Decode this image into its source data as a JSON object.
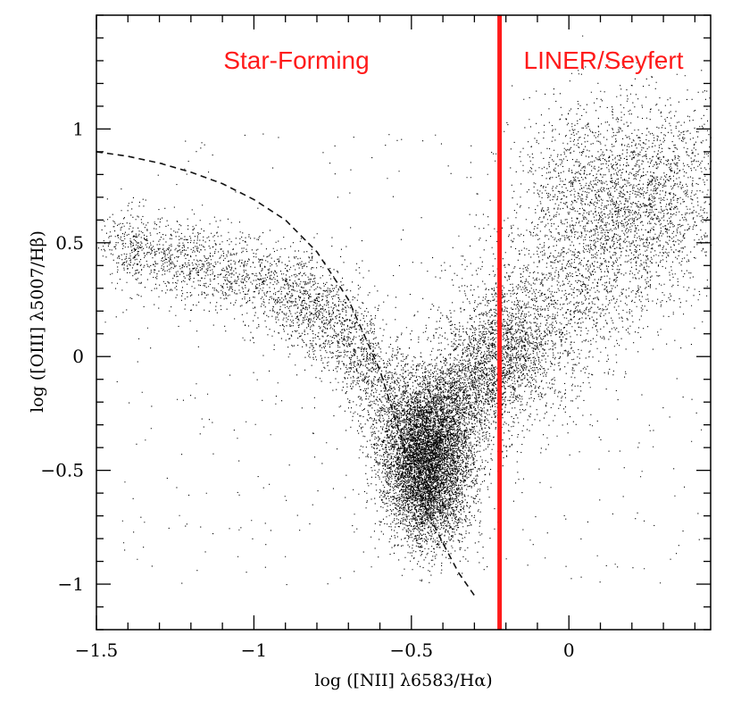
{
  "chart_data": {
    "type": "scatter",
    "title": "",
    "xlabel": "log ([NII] λ6583/Hα)",
    "ylabel": "log ([OIII] λ5007/Hβ)",
    "xlim": [
      -1.5,
      0.45
    ],
    "ylim": [
      -1.2,
      1.5
    ],
    "grid": false,
    "x_ticks": [
      -1.5,
      -1,
      -0.5,
      0
    ],
    "x_tick_labels": [
      "−1.5",
      "−1",
      "−0.5",
      "0"
    ],
    "y_ticks": [
      -1,
      -0.5,
      0,
      0.5,
      1
    ],
    "y_tick_labels": [
      "−1",
      "−0.5",
      "0",
      "0.5",
      "1"
    ],
    "divider_x": -0.22,
    "divider_color": "#ff1a1a",
    "region_labels": {
      "left": "Star-Forming",
      "right": "LINER/Seyfert"
    },
    "demarcation_curve": {
      "style": "dashed",
      "points": [
        [
          -1.5,
          0.9
        ],
        [
          -1.4,
          0.88
        ],
        [
          -1.3,
          0.85
        ],
        [
          -1.2,
          0.81
        ],
        [
          -1.1,
          0.76
        ],
        [
          -1.0,
          0.69
        ],
        [
          -0.9,
          0.6
        ],
        [
          -0.8,
          0.46
        ],
        [
          -0.7,
          0.25
        ],
        [
          -0.6,
          -0.06
        ],
        [
          -0.5,
          -0.5
        ],
        [
          -0.45,
          -0.68
        ],
        [
          -0.4,
          -0.82
        ],
        [
          -0.35,
          -0.95
        ],
        [
          -0.3,
          -1.05
        ]
      ]
    },
    "point_clouds": [
      {
        "name": "star-forming-branch",
        "count": 4500,
        "spine": [
          [
            -1.45,
            0.5
          ],
          [
            -1.2,
            0.42
          ],
          [
            -0.9,
            0.3
          ],
          [
            -0.75,
            0.15
          ],
          [
            -0.6,
            -0.1
          ],
          [
            -0.5,
            -0.4
          ],
          [
            -0.45,
            -0.6
          ],
          [
            -0.43,
            -0.75
          ]
        ],
        "spread": [
          0.06,
          0.09
        ]
      },
      {
        "name": "core-clump",
        "count": 5000,
        "center": [
          -0.45,
          -0.45
        ],
        "spread": [
          0.07,
          0.16
        ]
      },
      {
        "name": "composite-branch",
        "count": 2600,
        "spine": [
          [
            -0.45,
            -0.3
          ],
          [
            -0.35,
            -0.2
          ],
          [
            -0.25,
            -0.05
          ],
          [
            -0.15,
            0.1
          ]
        ],
        "spread": [
          0.07,
          0.12
        ]
      },
      {
        "name": "agn-branch",
        "count": 3500,
        "spine": [
          [
            -0.3,
            -0.1
          ],
          [
            -0.15,
            0.1
          ],
          [
            0.0,
            0.3
          ],
          [
            0.15,
            0.5
          ],
          [
            0.3,
            0.7
          ],
          [
            0.4,
            0.8
          ]
        ],
        "spread": [
          0.12,
          0.2
        ]
      },
      {
        "name": "agn-upper",
        "count": 1200,
        "center": [
          0.1,
          0.75
        ],
        "spread": [
          0.14,
          0.2
        ]
      },
      {
        "name": "sparse-field",
        "count": 500,
        "x_range": [
          -1.45,
          0.42
        ],
        "y_range": [
          -1.0,
          1.0
        ]
      }
    ]
  }
}
